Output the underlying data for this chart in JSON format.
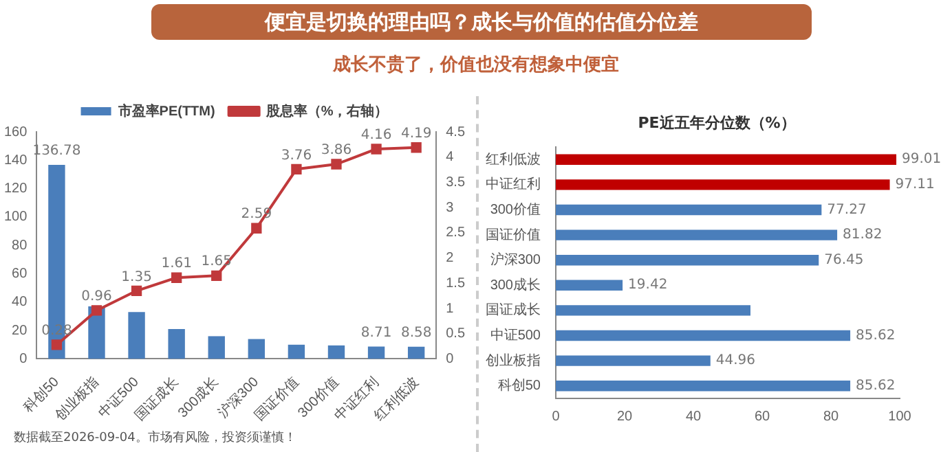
{
  "chart_data": [
    {
      "type": "bar",
      "title": "便宜是切换的理由吗？成长与价值的估值分位差",
      "subtitle": "成长不贵了，价值也没有想象中便宜",
      "annotations": [
        "数据截至2026-09-04。市场有风险，投资须谨慎！"
      ],
      "categories": [
        "科创50",
        "创业板指",
        "中证500",
        "国证成长",
        "300成长",
        "沪深300",
        "国证价值",
        "300价值",
        "中证红利",
        "红利低波"
      ],
      "series": [
        {
          "name": "市盈率PE(TTM)",
          "color": "#4a7ebb",
          "values": [
            136.78,
            37,
            33,
            21,
            16,
            14,
            10,
            9.5,
            8.71,
            8.58
          ],
          "value_labels": [
            "136.78",
            null,
            null,
            null,
            null,
            null,
            null,
            null,
            "8.71",
            "8.58"
          ]
        },
        {
          "name": "股息率（%，右轴）",
          "type": "line",
          "axis": "y2",
          "color": "#c0393b",
          "values": [
            0.28,
            0.96,
            1.35,
            1.61,
            1.65,
            2.59,
            3.76,
            3.86,
            4.16,
            4.19
          ],
          "value_labels": [
            "0.28",
            "0.96",
            "1.35",
            "1.61",
            "1.65",
            "2.59",
            "3.76",
            "3.86",
            "4.16",
            "4.19"
          ]
        }
      ],
      "ylim": [
        0,
        160
      ],
      "yticks": [
        0,
        20,
        40,
        60,
        80,
        100,
        120,
        140,
        160
      ],
      "y2lim": [
        0,
        4.5
      ],
      "y2ticks": [
        0,
        0.5,
        1,
        1.5,
        2,
        2.5,
        3,
        3.5,
        4,
        4.5
      ],
      "legend": "top",
      "marker": "square",
      "grid": false
    },
    {
      "type": "bar",
      "title": "PE近五年分位数（%）",
      "orientation": "horizontal",
      "categories": [
        "红利低波",
        "中证红利",
        "300价值",
        "国证价值",
        "沪深300",
        "300成长",
        "国证成长",
        "中证500",
        "创业板指",
        "科创50"
      ],
      "values": [
        99.01,
        97.11,
        77.27,
        81.82,
        76.45,
        19.42,
        56.6,
        85.62,
        44.96,
        85.62
      ],
      "value_labels": [
        "99.01",
        "97.11",
        "77.27",
        "81.82",
        "76.45",
        "19.42",
        null,
        "85.62",
        "44.96",
        "85.62"
      ],
      "colors": [
        "#c00000",
        "#c00000",
        "#4a7ebb",
        "#4a7ebb",
        "#4a7ebb",
        "#4a7ebb",
        "#4a7ebb",
        "#4a7ebb",
        "#4a7ebb",
        "#4a7ebb"
      ],
      "xlim": [
        0,
        100
      ],
      "xticks": [
        0,
        20,
        40,
        60,
        80,
        100
      ],
      "legend": false,
      "grid": false
    }
  ]
}
